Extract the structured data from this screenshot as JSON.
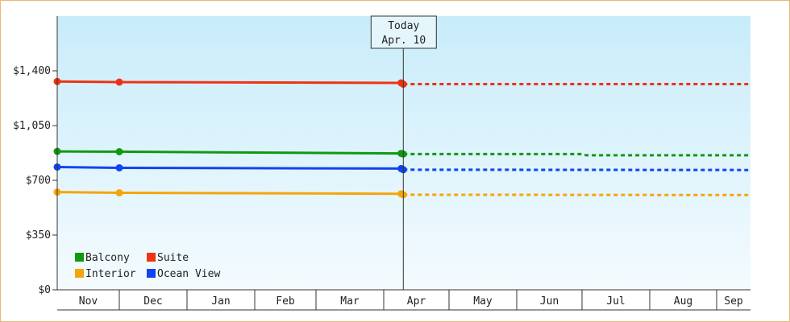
{
  "chart_data": {
    "type": "line",
    "title": "",
    "xlabel": "",
    "ylabel": "",
    "ylim": [
      0,
      1750
    ],
    "y_ticks": [
      {
        "value": 0,
        "label": "$0"
      },
      {
        "value": 350,
        "label": "$350"
      },
      {
        "value": 700,
        "label": "$700"
      },
      {
        "value": 1050,
        "label": "$1,050"
      },
      {
        "value": 1400,
        "label": "$1,400"
      }
    ],
    "x_ticks": [
      "Nov",
      "Dec",
      "Jan",
      "Feb",
      "Mar",
      "Apr",
      "May",
      "Jun",
      "Jul",
      "Aug",
      "Sep"
    ],
    "today_marker": {
      "line1": "Today",
      "line2": "Apr. 10"
    },
    "legend_position": "bottom-left",
    "grid": false,
    "series": [
      {
        "name": "Balcony",
        "color": "#119911",
        "actual": [
          [
            "Nov 1",
            885
          ],
          [
            "Dec 1",
            883
          ],
          [
            "Apr 9",
            872
          ],
          [
            "Apr 10",
            868
          ]
        ],
        "projected": [
          [
            "Apr 10",
            868
          ],
          [
            "Jul 1",
            868
          ],
          [
            "Jul 3",
            860
          ],
          [
            "Sep 15",
            860
          ]
        ]
      },
      {
        "name": "Suite",
        "color": "#ee3311",
        "actual": [
          [
            "Nov 1",
            1332
          ],
          [
            "Dec 1",
            1328
          ],
          [
            "Apr 9",
            1323
          ],
          [
            "Apr 10",
            1315
          ]
        ],
        "projected": [
          [
            "Apr 10",
            1315
          ],
          [
            "Sep 15",
            1315
          ]
        ]
      },
      {
        "name": "Interior",
        "color": "#f5a50a",
        "actual": [
          [
            "Nov 1",
            625
          ],
          [
            "Dec 1",
            620
          ],
          [
            "Apr 9",
            614
          ],
          [
            "Apr 10",
            608
          ]
        ],
        "projected": [
          [
            "Apr 10",
            608
          ],
          [
            "Sep 15",
            606
          ]
        ]
      },
      {
        "name": "Ocean View",
        "color": "#1144ee",
        "actual": [
          [
            "Nov 1",
            785
          ],
          [
            "Dec 1",
            780
          ],
          [
            "Apr 9",
            775
          ],
          [
            "Apr 10",
            768
          ]
        ],
        "projected": [
          [
            "Apr 10",
            768
          ],
          [
            "Sep 15",
            766
          ]
        ]
      }
    ]
  }
}
